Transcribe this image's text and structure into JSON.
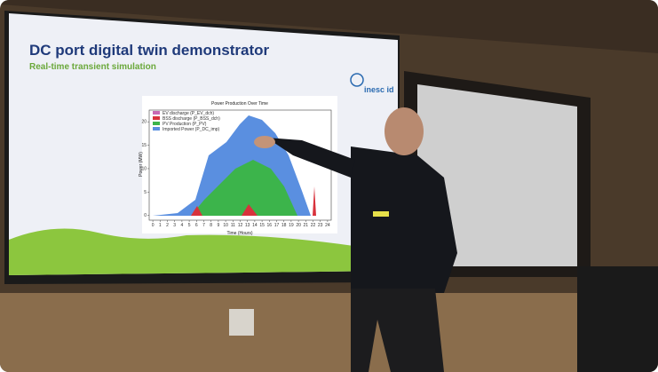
{
  "slide": {
    "title": "DC port digital twin demonstrator",
    "subtitle": "Real-time transient simulation",
    "logo": "inesc id"
  },
  "chart": {
    "title": "Power Production Over Time",
    "legend": [
      "EV discharge (P_EV_dch)",
      "BSS discharge (P_BSS_dch)",
      "PV Production (P_PV)",
      "Imported Power (P_DC_imp)"
    ],
    "legend_colors": [
      "#c86ab4",
      "#d8323c",
      "#3cb44b",
      "#5a8fe0"
    ],
    "ylabel": "Power (MW)",
    "xlabel": "Time (Hours)",
    "ylim": [
      -1,
      22.5
    ],
    "yticks": [
      0,
      5,
      10,
      15,
      20
    ],
    "xlim": [
      -0.5,
      24.5
    ],
    "xticks": [
      0,
      1,
      2,
      3,
      4,
      5,
      6,
      7,
      8,
      9,
      10,
      11,
      12,
      13,
      14,
      15,
      16,
      17,
      18,
      19,
      20,
      21,
      22,
      23,
      24
    ]
  }
}
